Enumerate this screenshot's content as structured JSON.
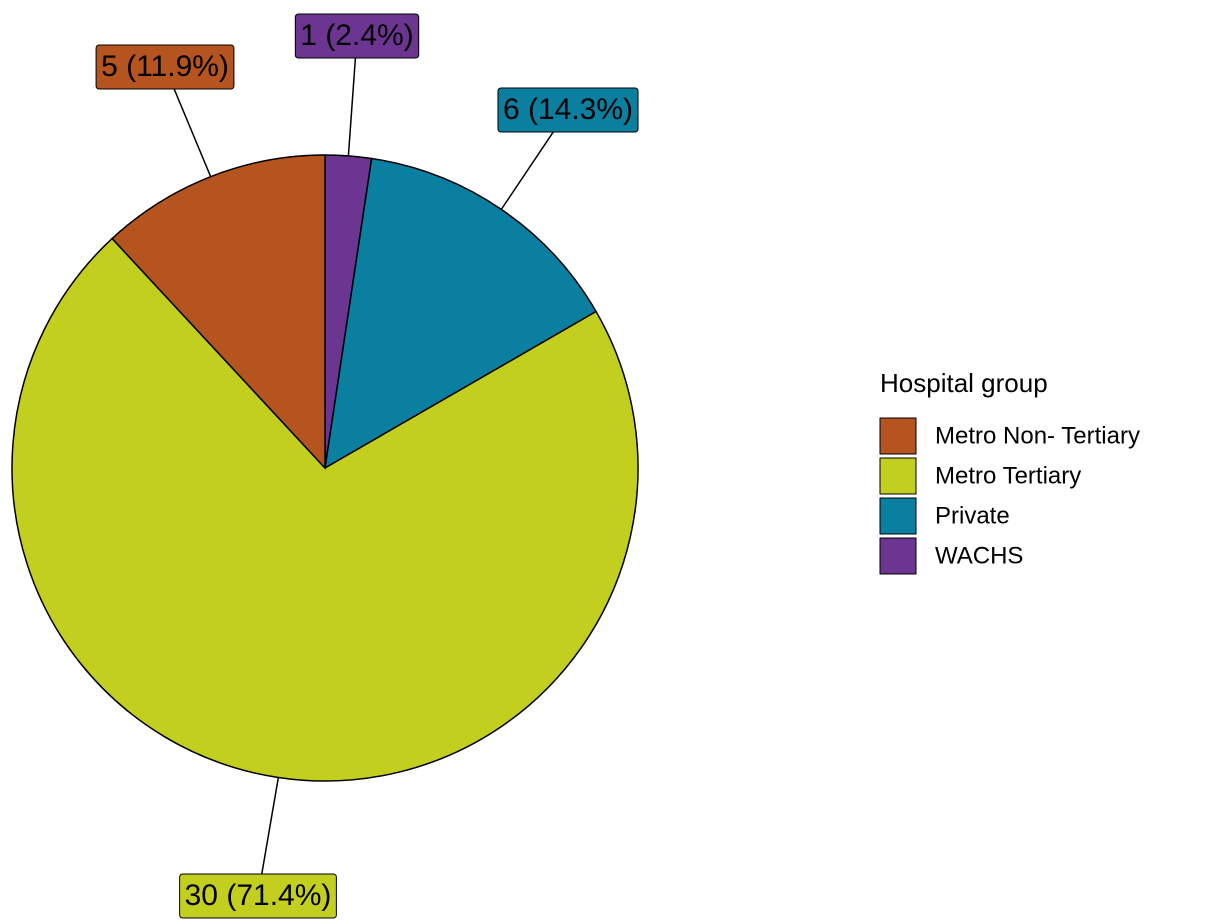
{
  "chart_data": {
    "type": "pie",
    "legend_title": "Hospital group",
    "categories": [
      "Metro Non- Tertiary",
      "Metro Tertiary",
      "Private",
      "WACHS"
    ],
    "values": [
      5,
      30,
      6,
      1
    ],
    "value_labels": [
      "5 (11.9%)",
      "30 (71.4%)",
      "6 (14.3%)",
      "1 (2.4%)"
    ],
    "colors": [
      "#b5541f",
      "#c3cf1e",
      "#0b7fa0",
      "#6d3592"
    ],
    "legend": "right"
  }
}
